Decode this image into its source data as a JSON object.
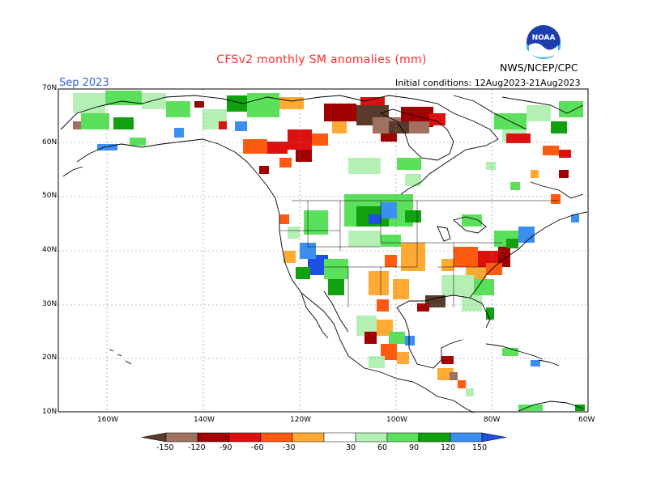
{
  "header": {
    "title": "CFSv2 monthly SM anomalies (mm)",
    "month": "Sep 2023",
    "initial_conditions": "Initial conditions: 12Aug2023-21Aug2023",
    "agency": "NWS/NCEP/CPC",
    "logo_text": "NOAA"
  },
  "axes": {
    "lat_labels": [
      "70N",
      "60N",
      "50N",
      "40N",
      "30N",
      "20N",
      "10N"
    ],
    "lon_labels": [
      "160W",
      "140W",
      "120W",
      "100W",
      "80W",
      "60W"
    ]
  },
  "colorbar": {
    "labels": [
      "-150",
      "-120",
      "-90",
      "-60",
      "-30",
      "30",
      "60",
      "90",
      "120",
      "150"
    ],
    "colors": [
      "#5a3a2a",
      "#a07060",
      "#a00000",
      "#dd1010",
      "#ff5a10",
      "#ffaa33",
      "#ffffff",
      "#b4f0b4",
      "#5ae05a",
      "#10a010",
      "#3b8ff0",
      "#1d4fe0"
    ]
  },
  "chart_data": {
    "type": "heatmap",
    "title": "CFSv2 monthly SM anomalies (mm)",
    "variable": "soil moisture anomaly",
    "units": "mm",
    "valid_month": "Sep 2023",
    "domain": {
      "lon": [
        -170,
        -60
      ],
      "lat": [
        10,
        70
      ]
    },
    "grid": true,
    "color_levels": [
      -150,
      -120,
      -90,
      -60,
      -30,
      30,
      60,
      90,
      120,
      150
    ],
    "regions": [
      {
        "area": "Northern Canada (Northwest Territories)",
        "anomaly": "-90 to -150"
      },
      {
        "area": "Alaska / Yukon",
        "anomaly": "mixed, mostly +30 to +90"
      },
      {
        "area": "Northern Great Plains / Dakotas",
        "anomaly": "+60 to +150"
      },
      {
        "area": "Southwest US / Arizona",
        "anomaly": "+60 to +150"
      },
      {
        "area": "Ohio Valley / Mid-Atlantic",
        "anomaly": "-30 to -120"
      },
      {
        "area": "Southern Plains / Texas",
        "anomaly": "-30 to -60"
      },
      {
        "area": "Gulf coast / Louisiana",
        "anomaly": "-60 to -150"
      },
      {
        "area": "Southeast US",
        "anomaly": "+30 to +60"
      },
      {
        "area": "Mexico",
        "anomaly": "mixed -90 to +60"
      }
    ]
  }
}
